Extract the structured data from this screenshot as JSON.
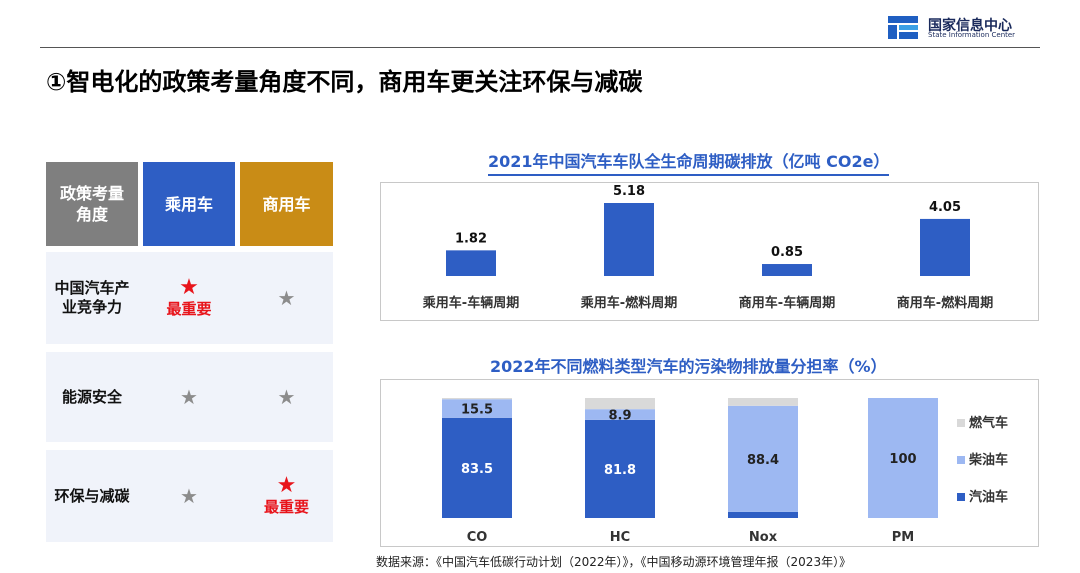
{
  "header": {
    "logo_cn": "国家信息中心",
    "logo_en": "State Information Center",
    "title": "①智电化的政策考量角度不同，商用车更关注环保与减碳"
  },
  "table": {
    "headers": [
      "政策考量角度",
      "乘用车",
      "商用车"
    ],
    "rows": [
      {
        "label": "中国汽车产业竞争力",
        "passenger": {
          "star": "★",
          "highlight": true,
          "note": "最重要"
        },
        "commercial": {
          "star": "★",
          "highlight": false,
          "note": ""
        }
      },
      {
        "label": "能源安全",
        "passenger": {
          "star": "★",
          "highlight": false,
          "note": ""
        },
        "commercial": {
          "star": "★",
          "highlight": false,
          "note": ""
        }
      },
      {
        "label": "环保与减碳",
        "passenger": {
          "star": "★",
          "highlight": false,
          "note": ""
        },
        "commercial": {
          "star": "★",
          "highlight": true,
          "note": "最重要"
        }
      }
    ]
  },
  "colors": {
    "blue": "#2e5ec4",
    "light_blue": "#9db8f2",
    "grey": "#d9d9d9",
    "gold": "#c98c16",
    "red": "#e8141b"
  },
  "chart_data": [
    {
      "type": "bar",
      "title": "2021年中国汽车车队全生命周期碳排放（亿吨 CO2e）",
      "categories": [
        "乘用车-车辆周期",
        "乘用车-燃料周期",
        "商用车-车辆周期",
        "商用车-燃料周期"
      ],
      "values": [
        1.82,
        5.18,
        0.85,
        4.05
      ],
      "value_labels": [
        "1.82",
        "5.18",
        "0.85",
        "4.05"
      ],
      "ylim": [
        0,
        5.5
      ],
      "grid": false,
      "legend": "none"
    },
    {
      "type": "bar",
      "stacked": true,
      "percent": true,
      "title": "2022年不同燃料类型汽车的污染物排放量分担率（%）",
      "categories": [
        "CO",
        "HC",
        "Nox",
        "PM"
      ],
      "series": [
        {
          "name": "汽油车",
          "values": [
            83.5,
            81.8,
            5.1,
            0
          ],
          "labels": [
            "83.5",
            "81.8",
            "",
            ""
          ]
        },
        {
          "name": "柴油车",
          "values": [
            15.5,
            8.9,
            88.4,
            100
          ],
          "labels": [
            "15.5",
            "8.9",
            "88.4",
            "100"
          ]
        },
        {
          "name": "燃气车",
          "values": [
            1.0,
            9.3,
            6.5,
            0
          ],
          "labels": [
            "",
            "",
            "",
            ""
          ]
        }
      ],
      "legend_order": [
        "燃气车",
        "柴油车",
        "汽油车"
      ],
      "ylim": [
        0,
        100
      ],
      "legend": "right"
    }
  ],
  "source": "数据来源：《中国汽车低碳行动计划（2022年）》，《中国移动源环境管理年报（2023年）》"
}
